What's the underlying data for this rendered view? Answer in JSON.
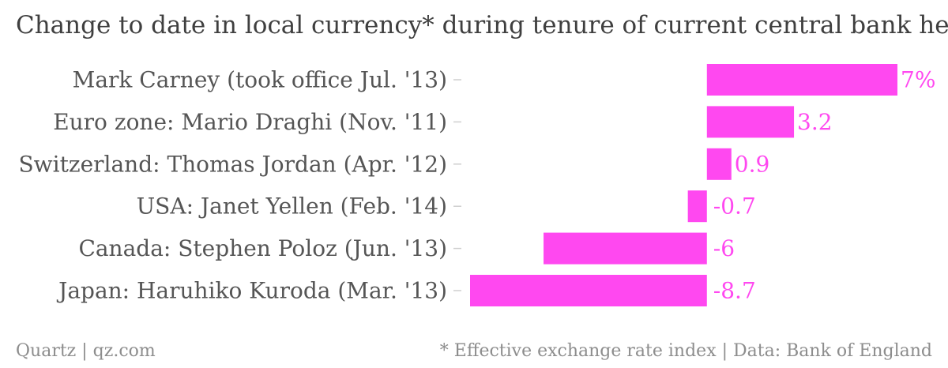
{
  "title": "Change to date in local currency* during tenure of current central bank head",
  "footer": {
    "source_left": "Quartz | qz.com",
    "source_right": "* Effective exchange rate index | Data: Bank of England"
  },
  "colors": {
    "bar": "#ff48f0",
    "value_label": "#ff48f0",
    "category_label": "#555555",
    "tick": "#cfcfcf"
  },
  "chart_data": {
    "type": "bar",
    "orientation": "horizontal",
    "categories": [
      "Mark Carney (took office Jul. '13)",
      "Euro zone: Mario Draghi (Nov. '11)",
      "Switzerland: Thomas Jordan (Apr. '12)",
      "USA: Janet Yellen (Feb. '14)",
      "Canada: Stephen Poloz (Jun. '13)",
      "Japan: Haruhiko Kuroda (Mar. '13)"
    ],
    "values": [
      7,
      3.2,
      0.9,
      -0.7,
      -6,
      -8.7
    ],
    "value_labels": [
      "7%",
      "3.2",
      "0.9",
      "-0.7",
      "-6",
      "-8.7"
    ],
    "xlim": [
      -8.7,
      7
    ],
    "grid": false,
    "legend": "none"
  }
}
